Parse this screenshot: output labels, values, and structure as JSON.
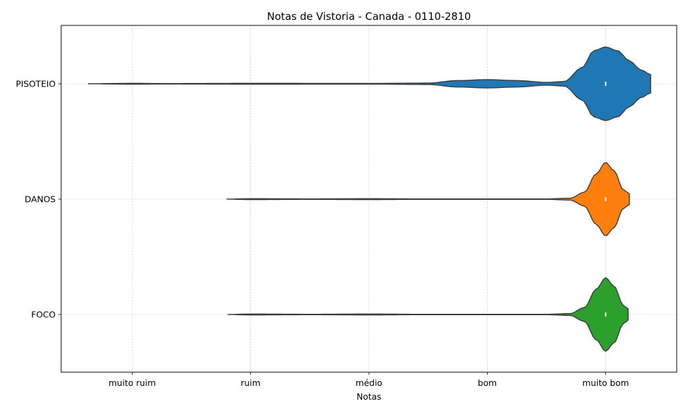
{
  "chart_data": {
    "type": "violin",
    "title": "Notas de Vistoria - Canada - 0110-2810",
    "xlabel": "Notas",
    "ylabel": "",
    "x_ticks": [
      "muito ruim",
      "ruim",
      "médio",
      "bom",
      "muito bom"
    ],
    "x_tick_values": [
      0,
      1,
      2,
      3,
      4
    ],
    "xlim": [
      -0.6,
      4.6
    ],
    "categories": [
      "PISOTEIO",
      "DANOS",
      "FOCO"
    ],
    "orientation": "horizontal",
    "grid": true,
    "series": [
      {
        "category": "PISOTEIO",
        "color": "#1f77b4",
        "median": 4,
        "extent": [
          -0.37,
          4.38
        ],
        "density": [
          [
            -0.37,
            0.0
          ],
          [
            0.0,
            0.01
          ],
          [
            0.3,
            0.005
          ],
          [
            1.0,
            0.01
          ],
          [
            2.0,
            0.008
          ],
          [
            2.5,
            0.015
          ],
          [
            2.75,
            0.07
          ],
          [
            3.0,
            0.09
          ],
          [
            3.25,
            0.07
          ],
          [
            3.5,
            0.03
          ],
          [
            3.65,
            0.05
          ],
          [
            3.8,
            0.35
          ],
          [
            3.9,
            0.72
          ],
          [
            4.0,
            0.8
          ],
          [
            4.1,
            0.72
          ],
          [
            4.2,
            0.5
          ],
          [
            4.3,
            0.3
          ],
          [
            4.38,
            0.2
          ]
        ]
      },
      {
        "category": "DANOS",
        "color": "#ff7f0e",
        "median": 4,
        "extent": [
          0.8,
          4.2
        ],
        "density": [
          [
            0.8,
            0.0
          ],
          [
            1.0,
            0.01
          ],
          [
            1.5,
            0.005
          ],
          [
            2.0,
            0.01
          ],
          [
            2.5,
            0.004
          ],
          [
            3.5,
            0.005
          ],
          [
            3.7,
            0.02
          ],
          [
            3.82,
            0.15
          ],
          [
            3.92,
            0.55
          ],
          [
            4.0,
            0.8
          ],
          [
            4.07,
            0.62
          ],
          [
            4.15,
            0.2
          ],
          [
            4.2,
            0.12
          ]
        ]
      },
      {
        "category": "FOCO",
        "color": "#2ca02c",
        "median": 4,
        "extent": [
          0.81,
          4.19
        ],
        "density": [
          [
            0.81,
            0.0
          ],
          [
            1.0,
            0.01
          ],
          [
            1.5,
            0.005
          ],
          [
            2.0,
            0.01
          ],
          [
            2.5,
            0.004
          ],
          [
            3.5,
            0.005
          ],
          [
            3.7,
            0.02
          ],
          [
            3.82,
            0.15
          ],
          [
            3.92,
            0.55
          ],
          [
            4.0,
            0.8
          ],
          [
            4.07,
            0.62
          ],
          [
            4.15,
            0.2
          ],
          [
            4.19,
            0.12
          ]
        ]
      }
    ]
  }
}
